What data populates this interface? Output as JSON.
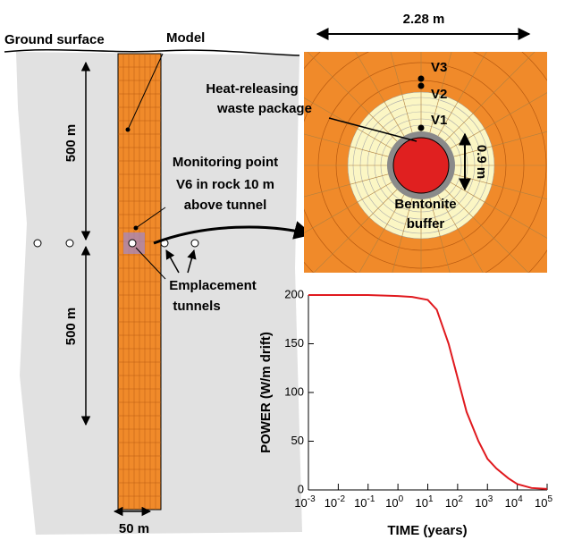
{
  "labels": {
    "ground_surface": "Ground surface",
    "model": "Model",
    "depth_upper": "500 m",
    "depth_lower": "500 m",
    "monitoring": [
      "Monitoring point",
      "V6 in rock 10 m",
      "above tunnel"
    ],
    "emplacement": [
      "Emplacement",
      "tunnels"
    ],
    "width": "50 m",
    "span": "2.28 m",
    "v3": "V3",
    "v2": "V2",
    "v1": "V1",
    "waste": [
      "Heat-releasing",
      "waste package"
    ],
    "radius": "0.9 m",
    "buffer": [
      "Bentonite",
      "buffer"
    ]
  },
  "chart_data": {
    "type": "line",
    "xlabel": "TIME (years)",
    "ylabel": "POWER (W/m drift)",
    "color": "#e0191e",
    "log_x": true,
    "x": [
      0.001,
      0.01,
      0.1,
      1,
      3,
      10,
      20,
      50,
      100,
      200,
      500,
      1000,
      2000,
      5000,
      10000,
      30000,
      100000
    ],
    "values": [
      200,
      200,
      200,
      199,
      198,
      195,
      185,
      150,
      115,
      80,
      50,
      32,
      22,
      12,
      6,
      2,
      1
    ],
    "xlim": [
      0.001,
      100000
    ],
    "xticks": [
      {
        "value": 0.001,
        "label": "10",
        "exponent": "-3"
      },
      {
        "value": 0.01,
        "label": "10",
        "exponent": "-2"
      },
      {
        "value": 0.1,
        "label": "10",
        "exponent": "-1"
      },
      {
        "value": 1,
        "label": "10",
        "exponent": "0"
      },
      {
        "value": 10,
        "label": "10",
        "exponent": "1"
      },
      {
        "value": 100,
        "label": "10",
        "exponent": "2"
      },
      {
        "value": 1000,
        "label": "10",
        "exponent": "3"
      },
      {
        "value": 10000,
        "label": "10",
        "exponent": "4"
      },
      {
        "value": 100000,
        "label": "10",
        "exponent": "5"
      }
    ],
    "ylim": [
      0,
      200
    ],
    "yticks": [
      0,
      50,
      100,
      150,
      200
    ]
  }
}
